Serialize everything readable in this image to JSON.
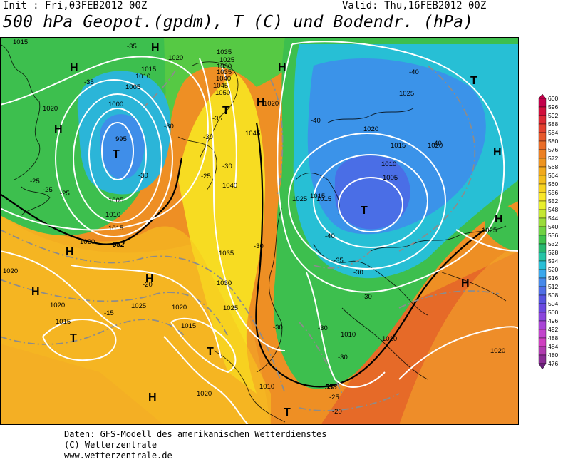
{
  "header": {
    "init": "Init : Fri,03FEB2012 00Z",
    "valid": "Valid: Thu,16FEB2012 00Z",
    "title": "500 hPa Geopot.(gpdm), T (C) und Bodendr. (hPa)"
  },
  "footer": {
    "line1": "Daten: GFS-Modell des amerikanischen Wetterdienstes",
    "line2": "(C) Wetterzentrale",
    "line3": "www.wetterzentrale.de"
  },
  "colorbar": {
    "levels": [
      "600",
      "596",
      "592",
      "588",
      "584",
      "580",
      "576",
      "572",
      "568",
      "564",
      "560",
      "556",
      "552",
      "548",
      "544",
      "540",
      "536",
      "532",
      "528",
      "524",
      "520",
      "516",
      "512",
      "508",
      "504",
      "500",
      "496",
      "492",
      "488",
      "484",
      "480",
      "476"
    ],
    "colors": [
      "#c3004a",
      "#d10f3c",
      "#dc2a35",
      "#e2402f",
      "#e6582b",
      "#e96c27",
      "#ec8023",
      "#ee9420",
      "#f1a91d",
      "#f3bd1c",
      "#f6d21f",
      "#f8e628",
      "#e8ef2c",
      "#c4e733",
      "#9adc3a",
      "#6fd243",
      "#3fc24d",
      "#27b86f",
      "#25c4a6",
      "#28bfd6",
      "#3aa7ec",
      "#4689ea",
      "#4f6ee6",
      "#5653df",
      "#6a49df",
      "#8a45dc",
      "#a944d6",
      "#c243cc",
      "#cf3fc0",
      "#b03aaf",
      "#8a2c94",
      "#6a1f7a"
    ]
  },
  "map": {
    "pressure_labels": [
      "1015",
      "1020",
      "1015",
      "1010",
      "1005",
      "1000",
      "995",
      "1005",
      "1010",
      "1015",
      "1020",
      "1025",
      "1030",
      "1035",
      "1040",
      "1045",
      "1050",
      "1035",
      "1040",
      "1045",
      "1035",
      "1030",
      "1025",
      "1020",
      "1015",
      "1020",
      "1025",
      "1020",
      "1015",
      "1020",
      "1025",
      "1020",
      "1015",
      "1010",
      "1005",
      "1010",
      "1015",
      "1020",
      "1025",
      "1020",
      "1010",
      "1020",
      "1025",
      "1015",
      "1020",
      "1020"
    ],
    "temperature_labels": [
      "-35",
      "-35",
      "-30",
      "-30",
      "-25",
      "-25",
      "-30",
      "-35",
      "-30",
      "-30",
      "-25",
      "-25",
      "-20",
      "-15",
      "-40",
      "-40",
      "-40",
      "-40",
      "-35",
      "-30",
      "-30",
      "-30",
      "-30",
      "-30",
      "-25",
      "-20"
    ],
    "geopotential_labels": [
      "552",
      "558"
    ],
    "highs": [
      "H",
      "H",
      "H",
      "H",
      "H",
      "H",
      "H",
      "H",
      "H",
      "H",
      "H",
      "H"
    ],
    "lows": [
      "T",
      "T",
      "T",
      "T",
      "T",
      "T",
      "T"
    ],
    "colors": {
      "isobar": "#ffffff",
      "isotherm": "#8a8a8a",
      "coast": "#000000"
    }
  }
}
